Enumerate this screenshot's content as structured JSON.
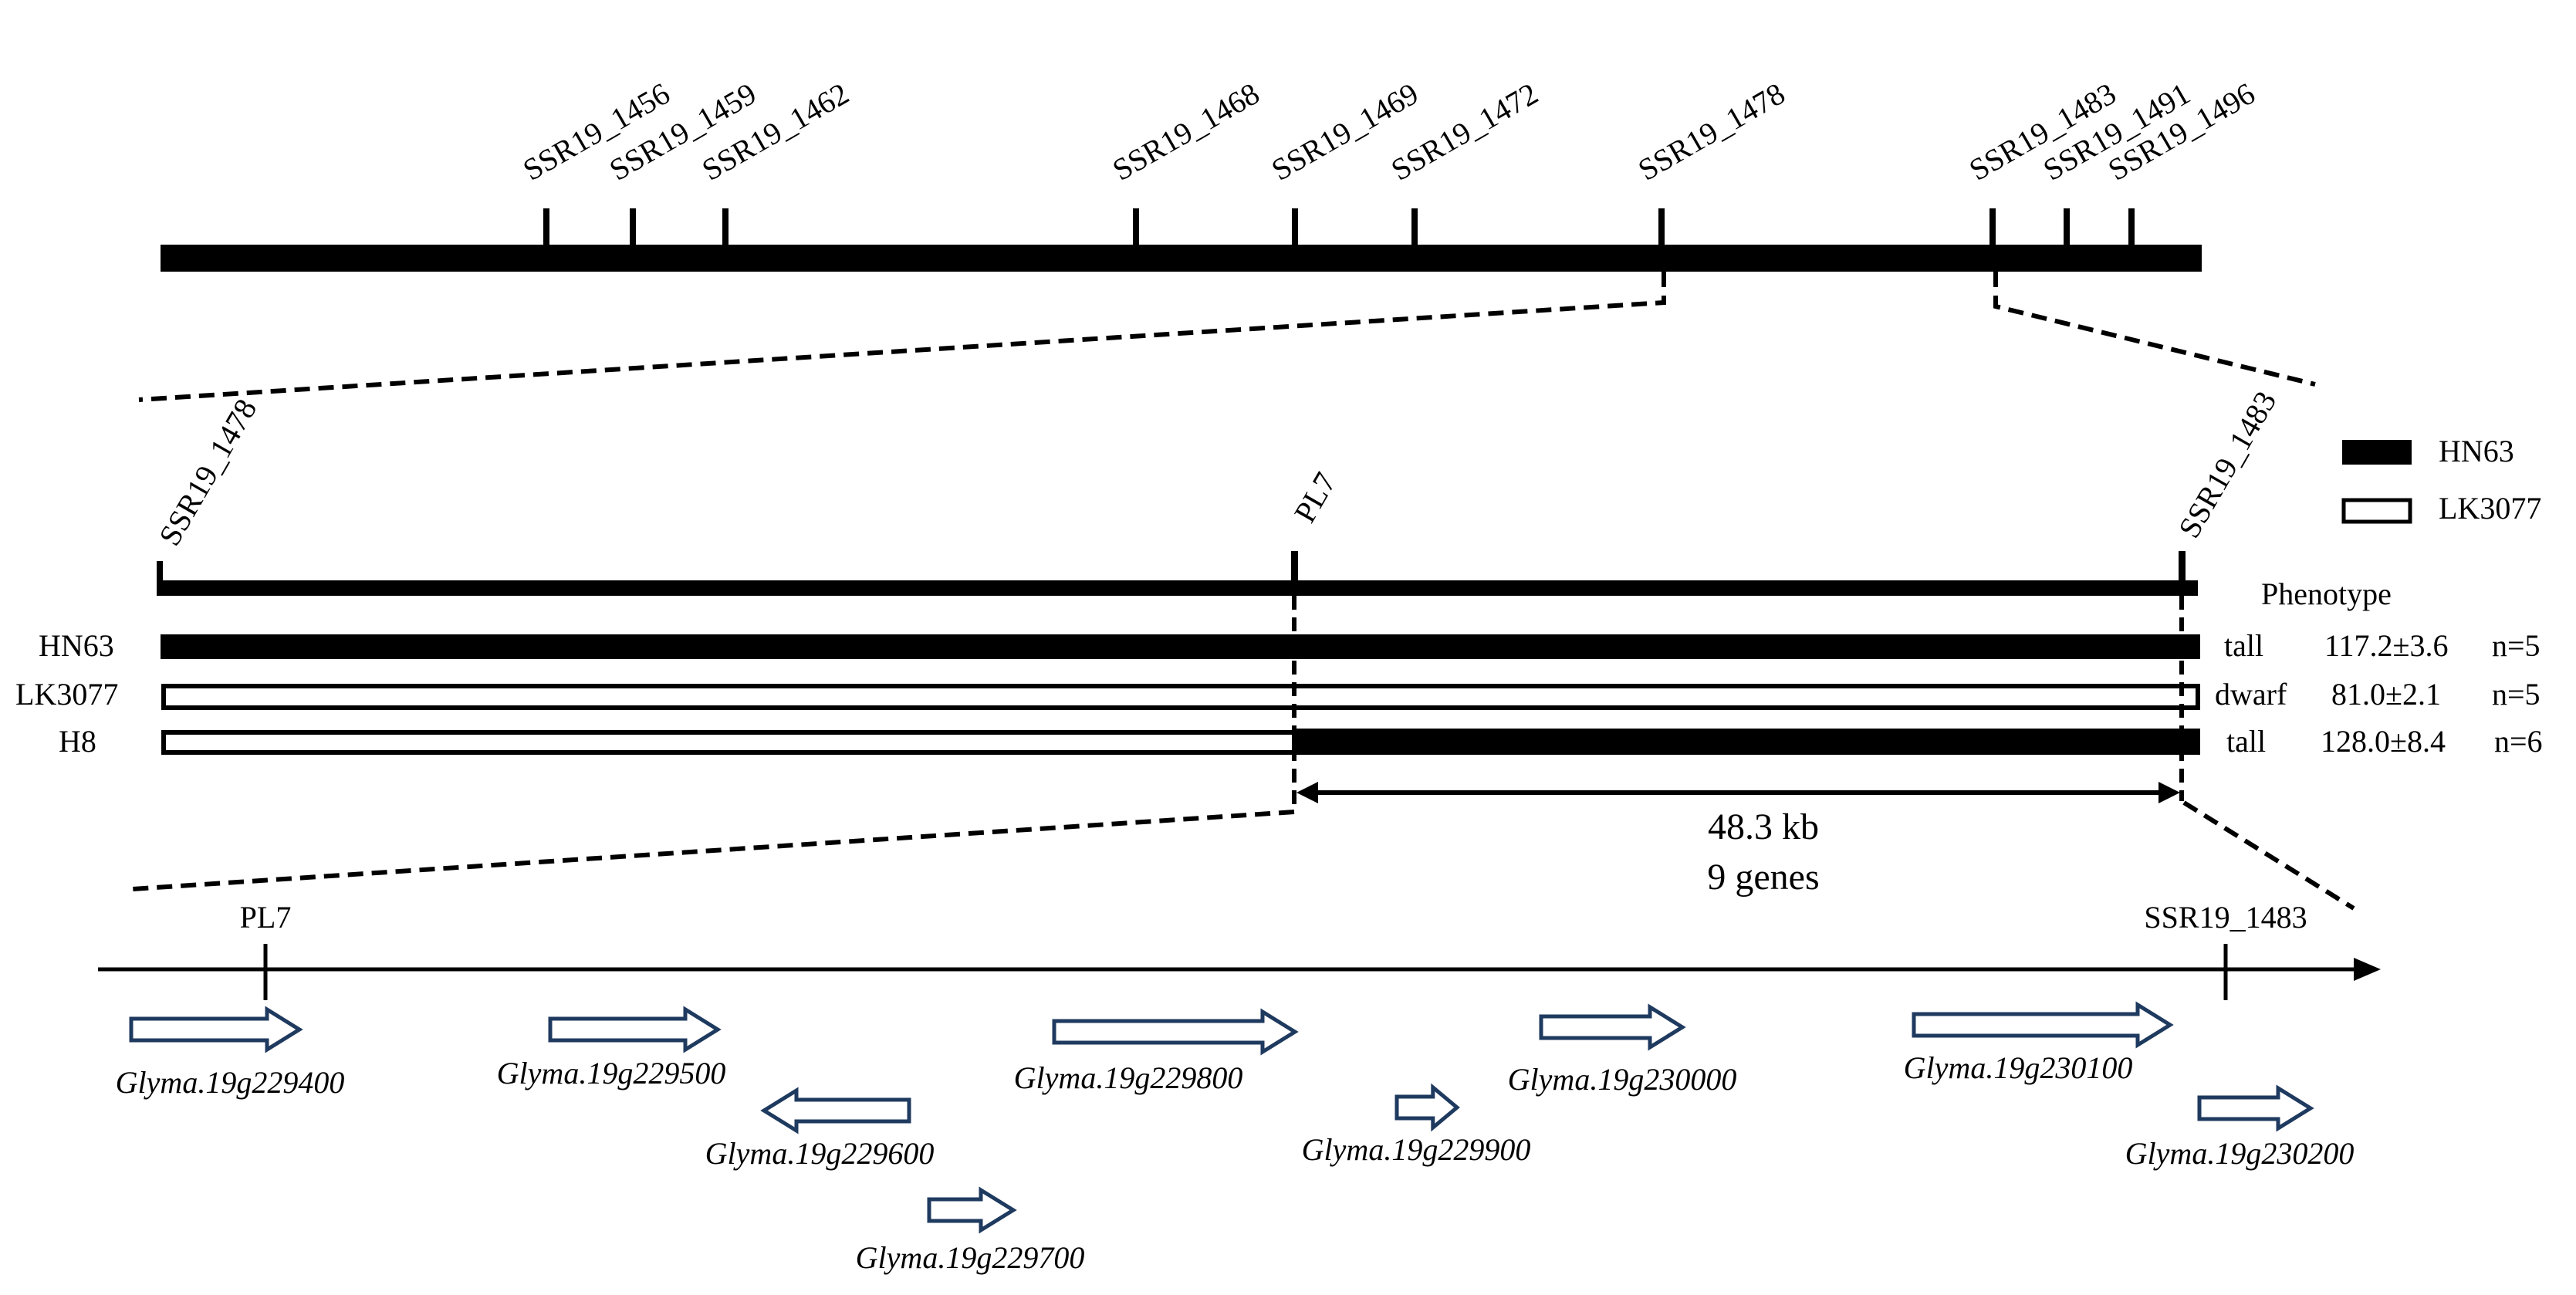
{
  "top_markers": [
    "SSR19_1456",
    "SSR19_1459",
    "SSR19_1462",
    "SSR19_1468",
    "SSR19_1469",
    "SSR19_1472",
    "SSR19_1478",
    "SSR19_1483",
    "SSR19_1491",
    "SSR19_1496"
  ],
  "mid_markers": {
    "left": "SSR19_1478",
    "center": "PL7",
    "right": "SSR19_1483"
  },
  "legend": {
    "filled": "HN63",
    "open": "LK3077"
  },
  "phenotype_header": "Phenotype",
  "lines": [
    {
      "name": "HN63",
      "phenotype": "tall",
      "value": "117.2±3.6",
      "n": "n=5"
    },
    {
      "name": "LK3077",
      "phenotype": "dwarf",
      "value": "81.0±2.1",
      "n": "n=5"
    },
    {
      "name": "H8",
      "phenotype": "tall",
      "value": "128.0±8.4",
      "n": "n=6"
    }
  ],
  "interval": {
    "size": "48.3 kb",
    "genes": "9 genes"
  },
  "gene_axis": {
    "left_marker": "PL7",
    "right_marker": "SSR19_1483"
  },
  "genes": [
    {
      "name": "Glyma.19g229400",
      "strand": "+"
    },
    {
      "name": "Glyma.19g229500",
      "strand": "+"
    },
    {
      "name": "Glyma.19g229600",
      "strand": "-"
    },
    {
      "name": "Glyma.19g229700",
      "strand": "+"
    },
    {
      "name": "Glyma.19g229800",
      "strand": "+"
    },
    {
      "name": "Glyma.19g229900",
      "strand": "+"
    },
    {
      "name": "Glyma.19g230000",
      "strand": "+"
    },
    {
      "name": "Glyma.19g230100",
      "strand": "+"
    },
    {
      "name": "Glyma.19g230200",
      "strand": "+"
    }
  ],
  "colors": {
    "ink": "#000000",
    "gene_arrow": "#1f3a5f"
  }
}
